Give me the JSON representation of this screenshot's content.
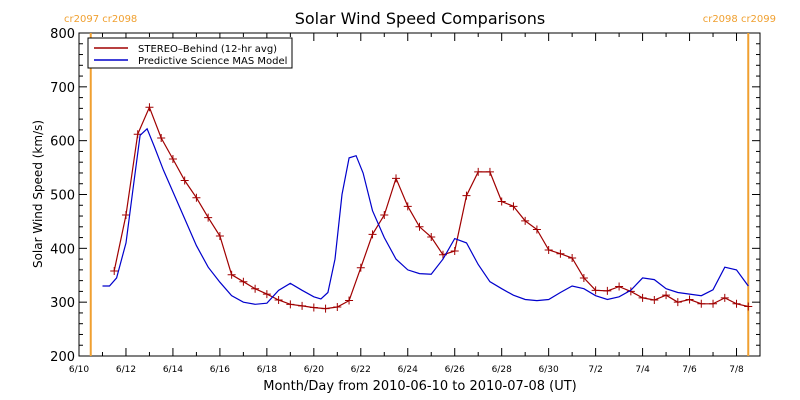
{
  "chart_data": {
    "type": "line",
    "title": "Solar Wind Speed Comparisons",
    "xlabel": "Month/Day from 2010-06-10 to 2010-07-08 (UT)",
    "ylabel": "Solar Wind Speed (km/s)",
    "ylim": [
      200,
      800
    ],
    "xlim": [
      0,
      29
    ],
    "x_unit": "days since 2010-06-10 00:00 UT",
    "x_ticks": [
      {
        "x": 0,
        "label": "6/10"
      },
      {
        "x": 2,
        "label": "6/12"
      },
      {
        "x": 4,
        "label": "6/14"
      },
      {
        "x": 6,
        "label": "6/16"
      },
      {
        "x": 8,
        "label": "6/18"
      },
      {
        "x": 10,
        "label": "6/20"
      },
      {
        "x": 12,
        "label": "6/22"
      },
      {
        "x": 14,
        "label": "6/24"
      },
      {
        "x": 16,
        "label": "6/26"
      },
      {
        "x": 18,
        "label": "6/28"
      },
      {
        "x": 20,
        "label": "6/30"
      },
      {
        "x": 22,
        "label": "7/2"
      },
      {
        "x": 24,
        "label": "7/4"
      },
      {
        "x": 26,
        "label": "7/6"
      },
      {
        "x": 28,
        "label": "7/8"
      }
    ],
    "y_ticks": [
      200,
      300,
      400,
      500,
      600,
      700,
      800
    ],
    "legend_placement": "top-left",
    "grid": false,
    "series": [
      {
        "name": "STEREO–Behind (12-hr avg)",
        "color": "#a00000",
        "marker": "plus",
        "points": [
          [
            1.5,
            358
          ],
          [
            2.0,
            462
          ],
          [
            2.5,
            612
          ],
          [
            3.0,
            662
          ],
          [
            3.5,
            605
          ],
          [
            4.0,
            566
          ],
          [
            4.5,
            526
          ],
          [
            5.0,
            494
          ],
          [
            5.5,
            457
          ],
          [
            6.0,
            423
          ],
          [
            6.5,
            351
          ],
          [
            7.0,
            338
          ],
          [
            7.5,
            325
          ],
          [
            8.0,
            315
          ],
          [
            8.5,
            304
          ],
          [
            9.0,
            296
          ],
          [
            9.5,
            293
          ],
          [
            10.0,
            290
          ],
          [
            10.5,
            288
          ],
          [
            11.0,
            291
          ],
          [
            11.5,
            303
          ],
          [
            12.0,
            364
          ],
          [
            12.5,
            426
          ],
          [
            13.0,
            462
          ],
          [
            13.5,
            530
          ],
          [
            14.0,
            478
          ],
          [
            14.5,
            440
          ],
          [
            15.0,
            421
          ],
          [
            15.5,
            388
          ],
          [
            16.0,
            395
          ],
          [
            16.5,
            498
          ],
          [
            17.0,
            542
          ],
          [
            17.5,
            542
          ],
          [
            18.0,
            487
          ],
          [
            18.5,
            478
          ],
          [
            19.0,
            451
          ],
          [
            19.5,
            435
          ],
          [
            20.0,
            397
          ],
          [
            20.5,
            390
          ],
          [
            21.0,
            382
          ],
          [
            21.5,
            345
          ],
          [
            22.0,
            322
          ],
          [
            22.5,
            321
          ],
          [
            23.0,
            329
          ],
          [
            23.5,
            320
          ],
          [
            24.0,
            308
          ],
          [
            24.5,
            304
          ],
          [
            25.0,
            313
          ],
          [
            25.5,
            300
          ],
          [
            26.0,
            305
          ],
          [
            26.5,
            297
          ],
          [
            27.0,
            297
          ],
          [
            27.5,
            308
          ],
          [
            28.0,
            297
          ],
          [
            28.5,
            292
          ]
        ]
      },
      {
        "name": "Predictive Science MAS Model",
        "color": "#0000cc",
        "marker": "none",
        "points": [
          [
            1.0,
            330
          ],
          [
            1.3,
            330
          ],
          [
            1.6,
            345
          ],
          [
            2.0,
            410
          ],
          [
            2.3,
            510
          ],
          [
            2.6,
            610
          ],
          [
            2.9,
            622
          ],
          [
            3.2,
            590
          ],
          [
            3.6,
            545
          ],
          [
            4.0,
            505
          ],
          [
            4.5,
            455
          ],
          [
            5.0,
            405
          ],
          [
            5.5,
            365
          ],
          [
            6.0,
            337
          ],
          [
            6.5,
            312
          ],
          [
            7.0,
            300
          ],
          [
            7.5,
            296
          ],
          [
            8.0,
            298
          ],
          [
            8.5,
            322
          ],
          [
            9.0,
            335
          ],
          [
            9.5,
            322
          ],
          [
            10.0,
            310
          ],
          [
            10.3,
            306
          ],
          [
            10.6,
            318
          ],
          [
            10.9,
            380
          ],
          [
            11.2,
            500
          ],
          [
            11.5,
            568
          ],
          [
            11.8,
            572
          ],
          [
            12.1,
            540
          ],
          [
            12.5,
            470
          ],
          [
            13.0,
            420
          ],
          [
            13.5,
            380
          ],
          [
            14.0,
            360
          ],
          [
            14.5,
            353
          ],
          [
            15.0,
            352
          ],
          [
            15.5,
            380
          ],
          [
            16.0,
            418
          ],
          [
            16.5,
            410
          ],
          [
            17.0,
            370
          ],
          [
            17.5,
            338
          ],
          [
            18.0,
            325
          ],
          [
            18.5,
            313
          ],
          [
            19.0,
            305
          ],
          [
            19.5,
            303
          ],
          [
            20.0,
            305
          ],
          [
            20.5,
            318
          ],
          [
            21.0,
            330
          ],
          [
            21.5,
            325
          ],
          [
            22.0,
            312
          ],
          [
            22.5,
            305
          ],
          [
            23.0,
            310
          ],
          [
            23.5,
            322
          ],
          [
            24.0,
            345
          ],
          [
            24.5,
            342
          ],
          [
            25.0,
            325
          ],
          [
            25.5,
            318
          ],
          [
            26.0,
            315
          ],
          [
            26.5,
            312
          ],
          [
            27.0,
            323
          ],
          [
            27.5,
            365
          ],
          [
            28.0,
            360
          ],
          [
            28.5,
            330
          ]
        ]
      }
    ],
    "markers": [
      {
        "x": 0.5,
        "label": "cr2097 cr2098",
        "color": "#f0a030",
        "label_side": "left"
      },
      {
        "x": 28.5,
        "label": "cr2098 cr2099",
        "color": "#f0a030",
        "label_side": "right"
      }
    ]
  }
}
